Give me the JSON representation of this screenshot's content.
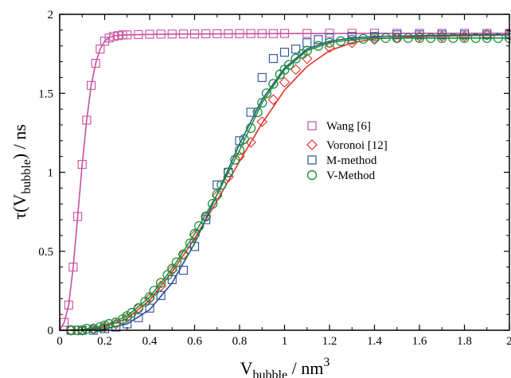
{
  "chart_data": {
    "type": "scatter",
    "title": "",
    "xlabel": {
      "main": "V",
      "sub": "bubble",
      "tail": " / nm",
      "sup": "3"
    },
    "ylabel": {
      "main": "τ(V",
      "sub": "bubble",
      "tail": ") / ns"
    },
    "xlim": [
      0,
      2
    ],
    "ylim": [
      0,
      2
    ],
    "x_ticks": [
      0,
      0.2,
      0.4,
      0.6,
      0.8,
      1,
      1.2,
      1.4,
      1.6,
      1.8,
      2
    ],
    "x_tick_labels": [
      "0",
      "0.2",
      "0.4",
      "0.6",
      "0.8",
      "1",
      "1.2",
      "1.4",
      "1.6",
      "1.8",
      "2"
    ],
    "y_ticks": [
      0,
      0.5,
      1,
      1.5,
      2
    ],
    "y_tick_labels": [
      "0",
      "0.5",
      "1",
      "1.5",
      "2"
    ],
    "grid": false,
    "legend_position": "right-center",
    "series": [
      {
        "name": "Wang [6]",
        "marker": "square",
        "color": "#c8509e",
        "points": [
          [
            0.02,
            0.05
          ],
          [
            0.04,
            0.16
          ],
          [
            0.06,
            0.4
          ],
          [
            0.08,
            0.72
          ],
          [
            0.1,
            1.05
          ],
          [
            0.12,
            1.33
          ],
          [
            0.14,
            1.55
          ],
          [
            0.16,
            1.69
          ],
          [
            0.18,
            1.78
          ],
          [
            0.2,
            1.83
          ],
          [
            0.22,
            1.85
          ],
          [
            0.24,
            1.86
          ],
          [
            0.26,
            1.865
          ],
          [
            0.28,
            1.87
          ],
          [
            0.3,
            1.87
          ],
          [
            0.35,
            1.872
          ],
          [
            0.4,
            1.874
          ],
          [
            0.45,
            1.875
          ],
          [
            0.5,
            1.875
          ],
          [
            0.55,
            1.876
          ],
          [
            0.6,
            1.876
          ],
          [
            0.65,
            1.877
          ],
          [
            0.7,
            1.877
          ],
          [
            0.75,
            1.877
          ],
          [
            0.8,
            1.878
          ],
          [
            0.85,
            1.878
          ],
          [
            0.9,
            1.878
          ],
          [
            0.95,
            1.878
          ],
          [
            1.0,
            1.879
          ],
          [
            1.1,
            1.879
          ],
          [
            1.2,
            1.88
          ],
          [
            1.3,
            1.88
          ],
          [
            1.4,
            1.88
          ],
          [
            1.5,
            1.88
          ],
          [
            1.6,
            1.88
          ],
          [
            1.7,
            1.88
          ],
          [
            1.8,
            1.88
          ],
          [
            1.9,
            1.88
          ],
          [
            2.0,
            1.88
          ]
        ],
        "fit": [
          [
            0.0,
            0.0
          ],
          [
            0.02,
            0.05
          ],
          [
            0.04,
            0.16
          ],
          [
            0.06,
            0.4
          ],
          [
            0.08,
            0.72
          ],
          [
            0.1,
            1.05
          ],
          [
            0.12,
            1.33
          ],
          [
            0.14,
            1.55
          ],
          [
            0.16,
            1.69
          ],
          [
            0.18,
            1.78
          ],
          [
            0.2,
            1.83
          ],
          [
            0.22,
            1.855
          ],
          [
            0.25,
            1.866
          ],
          [
            0.3,
            1.87
          ],
          [
            0.5,
            1.875
          ],
          [
            1.0,
            1.878
          ],
          [
            1.5,
            1.88
          ],
          [
            2.0,
            1.88
          ]
        ]
      },
      {
        "name": "Voronoi [12]",
        "marker": "diamond",
        "color": "#e8302a",
        "points": [
          [
            0.05,
            0.0
          ],
          [
            0.1,
            0.0
          ],
          [
            0.15,
            0.01
          ],
          [
            0.2,
            0.02
          ],
          [
            0.25,
            0.04
          ],
          [
            0.3,
            0.08
          ],
          [
            0.35,
            0.14
          ],
          [
            0.4,
            0.2
          ],
          [
            0.45,
            0.28
          ],
          [
            0.5,
            0.38
          ],
          [
            0.55,
            0.48
          ],
          [
            0.6,
            0.6
          ],
          [
            0.65,
            0.72
          ],
          [
            0.7,
            0.85
          ],
          [
            0.75,
            0.97
          ],
          [
            0.8,
            1.1
          ],
          [
            0.85,
            1.19
          ],
          [
            0.9,
            1.32
          ],
          [
            0.95,
            1.46
          ],
          [
            1.0,
            1.57
          ],
          [
            1.05,
            1.65
          ],
          [
            1.1,
            1.72
          ],
          [
            1.2,
            1.79
          ],
          [
            1.3,
            1.82
          ],
          [
            1.4,
            1.84
          ],
          [
            1.5,
            1.85
          ],
          [
            1.6,
            1.86
          ],
          [
            1.7,
            1.86
          ],
          [
            1.8,
            1.86
          ],
          [
            1.9,
            1.87
          ],
          [
            2.0,
            1.87
          ]
        ],
        "fit": [
          [
            0.0,
            0.0
          ],
          [
            0.1,
            0.003
          ],
          [
            0.2,
            0.02
          ],
          [
            0.3,
            0.075
          ],
          [
            0.4,
            0.19
          ],
          [
            0.5,
            0.37
          ],
          [
            0.6,
            0.58
          ],
          [
            0.7,
            0.82
          ],
          [
            0.8,
            1.07
          ],
          [
            0.9,
            1.31
          ],
          [
            1.0,
            1.52
          ],
          [
            1.1,
            1.67
          ],
          [
            1.2,
            1.77
          ],
          [
            1.3,
            1.82
          ],
          [
            1.4,
            1.845
          ],
          [
            1.6,
            1.86
          ],
          [
            1.8,
            1.865
          ],
          [
            2.0,
            1.87
          ]
        ]
      },
      {
        "name": "M-method",
        "marker": "square",
        "color": "#2a4e9e",
        "points": [
          [
            0.05,
            0.0
          ],
          [
            0.1,
            0.0
          ],
          [
            0.15,
            0.0
          ],
          [
            0.2,
            0.01
          ],
          [
            0.25,
            0.02
          ],
          [
            0.3,
            0.04
          ],
          [
            0.35,
            0.08
          ],
          [
            0.4,
            0.14
          ],
          [
            0.45,
            0.22
          ],
          [
            0.5,
            0.32
          ],
          [
            0.55,
            0.38
          ],
          [
            0.6,
            0.53
          ],
          [
            0.65,
            0.7
          ],
          [
            0.7,
            0.92
          ],
          [
            0.75,
            1.0
          ],
          [
            0.8,
            1.2
          ],
          [
            0.85,
            1.38
          ],
          [
            0.9,
            1.6
          ],
          [
            0.95,
            1.72
          ],
          [
            1.0,
            1.76
          ],
          [
            1.05,
            1.78
          ],
          [
            1.1,
            1.82
          ],
          [
            1.15,
            1.84
          ],
          [
            1.2,
            1.85
          ],
          [
            1.3,
            1.86
          ],
          [
            1.4,
            1.86
          ],
          [
            1.5,
            1.87
          ],
          [
            1.6,
            1.87
          ],
          [
            1.7,
            1.87
          ],
          [
            1.8,
            1.87
          ],
          [
            1.9,
            1.87
          ],
          [
            2.0,
            1.87
          ]
        ],
        "fit": [
          [
            0.0,
            0.0
          ],
          [
            0.1,
            0.001
          ],
          [
            0.2,
            0.01
          ],
          [
            0.3,
            0.04
          ],
          [
            0.4,
            0.13
          ],
          [
            0.5,
            0.3
          ],
          [
            0.6,
            0.55
          ],
          [
            0.7,
            0.86
          ],
          [
            0.8,
            1.18
          ],
          [
            0.9,
            1.46
          ],
          [
            1.0,
            1.66
          ],
          [
            1.1,
            1.78
          ],
          [
            1.2,
            1.83
          ],
          [
            1.3,
            1.85
          ],
          [
            1.4,
            1.86
          ],
          [
            1.6,
            1.865
          ],
          [
            1.8,
            1.87
          ],
          [
            2.0,
            1.87
          ]
        ]
      },
      {
        "name": "V-Method",
        "marker": "circle",
        "color": "#1f8f3a",
        "points": [
          [
            0.05,
            0.0
          ],
          [
            0.08,
            0.0
          ],
          [
            0.1,
            0.0
          ],
          [
            0.12,
            0.01
          ],
          [
            0.15,
            0.01
          ],
          [
            0.18,
            0.02
          ],
          [
            0.2,
            0.03
          ],
          [
            0.22,
            0.04
          ],
          [
            0.25,
            0.05
          ],
          [
            0.28,
            0.07
          ],
          [
            0.3,
            0.09
          ],
          [
            0.32,
            0.11
          ],
          [
            0.35,
            0.14
          ],
          [
            0.38,
            0.18
          ],
          [
            0.4,
            0.21
          ],
          [
            0.42,
            0.25
          ],
          [
            0.45,
            0.3
          ],
          [
            0.48,
            0.35
          ],
          [
            0.5,
            0.39
          ],
          [
            0.52,
            0.43
          ],
          [
            0.55,
            0.48
          ],
          [
            0.58,
            0.55
          ],
          [
            0.6,
            0.61
          ],
          [
            0.62,
            0.66
          ],
          [
            0.65,
            0.72
          ],
          [
            0.68,
            0.8
          ],
          [
            0.7,
            0.86
          ],
          [
            0.72,
            0.92
          ],
          [
            0.75,
            1.0
          ],
          [
            0.78,
            1.08
          ],
          [
            0.8,
            1.14
          ],
          [
            0.82,
            1.21
          ],
          [
            0.85,
            1.28
          ],
          [
            0.88,
            1.38
          ],
          [
            0.9,
            1.44
          ],
          [
            0.92,
            1.5
          ],
          [
            0.95,
            1.56
          ],
          [
            0.98,
            1.62
          ],
          [
            1.0,
            1.65
          ],
          [
            1.02,
            1.68
          ],
          [
            1.05,
            1.72
          ],
          [
            1.08,
            1.75
          ],
          [
            1.1,
            1.77
          ],
          [
            1.15,
            1.8
          ],
          [
            1.2,
            1.82
          ],
          [
            1.25,
            1.83
          ],
          [
            1.3,
            1.84
          ],
          [
            1.35,
            1.845
          ],
          [
            1.4,
            1.85
          ],
          [
            1.45,
            1.85
          ],
          [
            1.5,
            1.85
          ],
          [
            1.55,
            1.85
          ],
          [
            1.6,
            1.85
          ],
          [
            1.65,
            1.85
          ],
          [
            1.7,
            1.85
          ],
          [
            1.75,
            1.85
          ],
          [
            1.8,
            1.85
          ],
          [
            1.85,
            1.85
          ],
          [
            1.9,
            1.85
          ],
          [
            1.95,
            1.85
          ],
          [
            2.0,
            1.85
          ]
        ],
        "fit": [
          [
            0.0,
            0.0
          ],
          [
            0.1,
            0.004
          ],
          [
            0.2,
            0.03
          ],
          [
            0.3,
            0.09
          ],
          [
            0.4,
            0.21
          ],
          [
            0.5,
            0.39
          ],
          [
            0.6,
            0.61
          ],
          [
            0.7,
            0.86
          ],
          [
            0.8,
            1.14
          ],
          [
            0.9,
            1.44
          ],
          [
            1.0,
            1.65
          ],
          [
            1.1,
            1.77
          ],
          [
            1.2,
            1.82
          ],
          [
            1.3,
            1.84
          ],
          [
            1.4,
            1.85
          ],
          [
            1.6,
            1.85
          ],
          [
            1.8,
            1.85
          ],
          [
            2.0,
            1.85
          ]
        ]
      }
    ]
  }
}
